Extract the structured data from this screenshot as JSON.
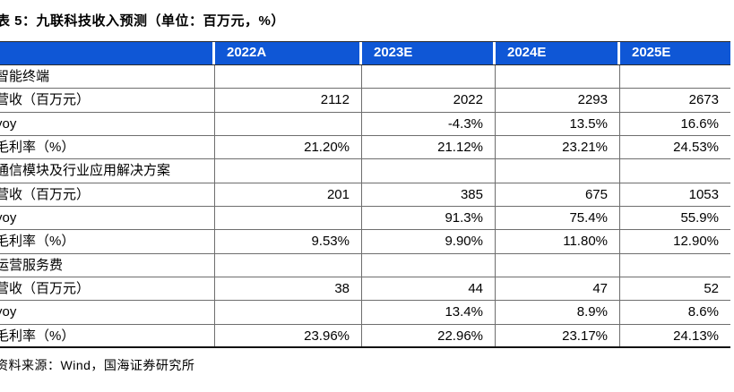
{
  "page": {
    "title": "表 5：九联科技收入预测（单位：百万元，%）",
    "source_note": "资料来源：Wind，国海证券研究所"
  },
  "colors": {
    "header_bg": "#0F57D6",
    "header_text": "#FFFFFF",
    "grid_line": "#6E6E6E",
    "strong_line": "#111111",
    "body_text": "#000000"
  },
  "table": {
    "columns": [
      "",
      "2022A",
      "2023E",
      "2024E",
      "2025E"
    ],
    "rows": [
      {
        "type": "section",
        "label": "智能终端",
        "values": [
          "",
          "",
          "",
          ""
        ]
      },
      {
        "type": "data",
        "label": "营收（百万元）",
        "values": [
          "2112",
          "2022",
          "2293",
          "2673"
        ]
      },
      {
        "type": "data",
        "label": "yoy",
        "values": [
          "",
          "-4.3%",
          "13.5%",
          "16.6%"
        ]
      },
      {
        "type": "data",
        "label": "毛利率（%）",
        "values": [
          "21.20%",
          "21.12%",
          "23.21%",
          "24.53%"
        ]
      },
      {
        "type": "section",
        "label": "通信模块及行业应用解决方案",
        "values": [
          "",
          "",
          "",
          ""
        ]
      },
      {
        "type": "data",
        "label": "营收（百万元）",
        "values": [
          "201",
          "385",
          "675",
          "1053"
        ]
      },
      {
        "type": "data",
        "label": "yoy",
        "values": [
          "",
          "91.3%",
          "75.4%",
          "55.9%"
        ]
      },
      {
        "type": "data",
        "label": "毛利率（%）",
        "values": [
          "9.53%",
          "9.90%",
          "11.80%",
          "12.90%"
        ]
      },
      {
        "type": "section",
        "label": "运营服务费",
        "values": [
          "",
          "",
          "",
          ""
        ]
      },
      {
        "type": "data",
        "label": "营收（百万元）",
        "values": [
          "38",
          "44",
          "47",
          "52"
        ]
      },
      {
        "type": "data",
        "label": "yoy",
        "values": [
          "",
          "13.4%",
          "8.9%",
          "8.6%"
        ]
      },
      {
        "type": "data",
        "label": "毛利率（%）",
        "values": [
          "23.96%",
          "22.96%",
          "23.17%",
          "24.13%"
        ]
      }
    ]
  },
  "chart_data": {
    "type": "table",
    "title": "表 5：九联科技收入预测（单位：百万元，%）",
    "columns": [
      "2022A",
      "2023E",
      "2024E",
      "2025E"
    ],
    "sections": [
      {
        "name": "智能终端",
        "rows": [
          {
            "metric": "营收（百万元）",
            "values": [
              2112,
              2022,
              2293,
              2673
            ]
          },
          {
            "metric": "yoy",
            "values": [
              null,
              "-4.3%",
              "13.5%",
              "16.6%"
            ]
          },
          {
            "metric": "毛利率（%）",
            "values": [
              "21.20%",
              "21.12%",
              "23.21%",
              "24.53%"
            ]
          }
        ]
      },
      {
        "name": "通信模块及行业应用解决方案",
        "rows": [
          {
            "metric": "营收（百万元）",
            "values": [
              201,
              385,
              675,
              1053
            ]
          },
          {
            "metric": "yoy",
            "values": [
              null,
              "91.3%",
              "75.4%",
              "55.9%"
            ]
          },
          {
            "metric": "毛利率（%）",
            "values": [
              "9.53%",
              "9.90%",
              "11.80%",
              "12.90%"
            ]
          }
        ]
      },
      {
        "name": "运营服务费",
        "rows": [
          {
            "metric": "营收（百万元）",
            "values": [
              38,
              44,
              47,
              52
            ]
          },
          {
            "metric": "yoy",
            "values": [
              null,
              "13.4%",
              "8.9%",
              "8.6%"
            ]
          },
          {
            "metric": "毛利率（%）",
            "values": [
              "23.96%",
              "22.96%",
              "23.17%",
              "24.13%"
            ]
          }
        ]
      }
    ]
  }
}
